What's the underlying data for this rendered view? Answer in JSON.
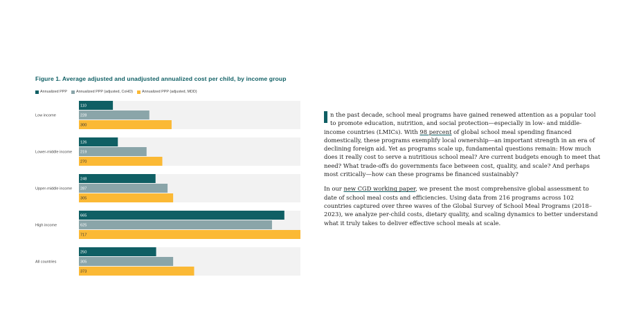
{
  "figure": {
    "title": "Figure 1. Average adjusted and unadjusted annualized cost per child, by income group"
  },
  "chart_data": {
    "type": "bar",
    "orientation": "horizontal",
    "title": "Figure 1. Average adjusted and unadjusted annualized cost per child, by income group",
    "categories": [
      "Low income",
      "Lower-middle income",
      "Upper-middle income",
      "High income",
      "All countries"
    ],
    "series": [
      {
        "name": "Annualized PPP",
        "color": "#0f5f64",
        "label_color": "#ffffff",
        "values": [
          110,
          126,
          248,
          665,
          250
        ]
      },
      {
        "name": "Annualized PPP (adjusted, CoHD)",
        "color": "#8aa5a9",
        "label_color": "#ffffff",
        "values": [
          228,
          219,
          287,
          625,
          305
        ]
      },
      {
        "name": "Annualized PPP (adjusted, MDD)",
        "color": "#fbb935",
        "label_color": "#333333",
        "values": [
          300,
          270,
          305,
          717,
          373
        ]
      }
    ],
    "xlim": [
      0,
      717
    ],
    "grid": false,
    "legend_position": "top-left",
    "xlabel": "",
    "ylabel": ""
  },
  "article": {
    "para1_dropcap_letter": "I",
    "para1_rest": "n the past decade, school meal programs have gained renewed attention as a popular tool to promote education, nutrition, and social protection—especially in low- and middle-income countries (LMICs). With ",
    "para1_link": "98 percent",
    "para1_after_link": " of global school meal spending financed domestically, these programs exemplify local ownership—an important strength in an era of declining foreign aid. Yet as programs scale up, fundamental questions remain: How much does it really cost to serve a nutritious school meal? Are current budgets enough to meet that need? What trade-offs do governments face between cost, quality, and scale? And perhaps most critically—how can these programs be financed sustainably?",
    "para2_before_link": "In our ",
    "para2_link": "new CGD working paper",
    "para2_after_link": ", we present the most comprehensive global assessment to date of school meal costs and efficiencies. Using data from 216 programs across 102 countries captured over three waves of the Global Survey of School Meal Programs (2018–2023), we analyze per-child costs, dietary quality, and scaling dynamics to better understand what it truly takes to deliver effective school meals at scale."
  }
}
